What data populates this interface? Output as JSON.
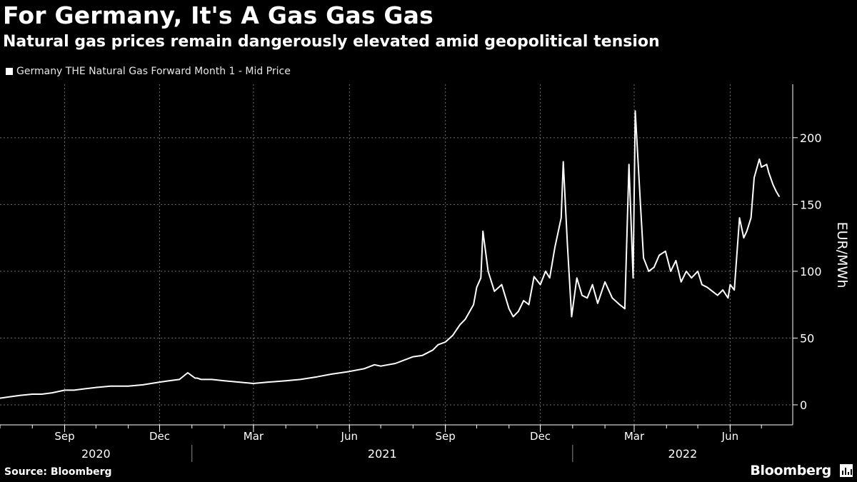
{
  "header": {
    "title": "For Germany, It's A Gas Gas Gas",
    "subtitle": "Natural gas prices remain dangerously elevated amid geopolitical tension"
  },
  "footer": {
    "source": "Source: Bloomberg",
    "brand": "Bloomberg"
  },
  "colors": {
    "background": "#000000",
    "line": "#ffffff",
    "grid": "#6e6e6e"
  },
  "chart_data": {
    "type": "line",
    "title": "For Germany, It's A Gas Gas Gas",
    "subtitle": "Natural gas prices remain dangerously elevated amid geopolitical tension",
    "ylabel": "EUR/MWh",
    "ylim": [
      -15,
      240
    ],
    "yticks": [
      0,
      50,
      100,
      150,
      200
    ],
    "xlim": [
      "2020-07-01",
      "2022-07-31"
    ],
    "grid": true,
    "legend_position": "top-left",
    "x_month_ticks": [
      {
        "date": "2020-09-01",
        "label": "Sep"
      },
      {
        "date": "2020-12-01",
        "label": "Dec"
      },
      {
        "date": "2021-03-01",
        "label": "Mar"
      },
      {
        "date": "2021-06-01",
        "label": "Jun"
      },
      {
        "date": "2021-09-01",
        "label": "Sep"
      },
      {
        "date": "2021-12-01",
        "label": "Dec"
      },
      {
        "date": "2022-03-01",
        "label": "Mar"
      },
      {
        "date": "2022-06-01",
        "label": "Jun"
      }
    ],
    "x_year_labels": [
      {
        "label": "2020",
        "start": "2020-07-01",
        "end": "2021-01-01"
      },
      {
        "label": "2021",
        "start": "2021-01-01",
        "end": "2022-01-01"
      },
      {
        "label": "2022",
        "start": "2022-01-01",
        "end": "2022-07-31"
      }
    ],
    "series": [
      {
        "name": "Germany THE Natural Gas Forward Month 1 - Mid Price",
        "x": [
          "2020-07-01",
          "2020-07-10",
          "2020-07-20",
          "2020-08-01",
          "2020-08-10",
          "2020-08-20",
          "2020-09-01",
          "2020-09-10",
          "2020-09-20",
          "2020-10-01",
          "2020-10-15",
          "2020-11-01",
          "2020-11-15",
          "2020-12-01",
          "2020-12-10",
          "2020-12-20",
          "2020-12-28",
          "2021-01-04",
          "2021-01-06",
          "2021-01-10",
          "2021-01-20",
          "2021-02-01",
          "2021-02-15",
          "2021-03-01",
          "2021-03-15",
          "2021-04-01",
          "2021-04-15",
          "2021-05-01",
          "2021-05-15",
          "2021-06-01",
          "2021-06-15",
          "2021-06-25",
          "2021-07-01",
          "2021-07-15",
          "2021-08-01",
          "2021-08-10",
          "2021-08-20",
          "2021-08-25",
          "2021-09-01",
          "2021-09-08",
          "2021-09-15",
          "2021-09-20",
          "2021-09-28",
          "2021-10-01",
          "2021-10-05",
          "2021-10-07",
          "2021-10-12",
          "2021-10-18",
          "2021-10-25",
          "2021-11-01",
          "2021-11-05",
          "2021-11-10",
          "2021-11-15",
          "2021-11-20",
          "2021-11-25",
          "2021-12-01",
          "2021-12-06",
          "2021-12-10",
          "2021-12-15",
          "2021-12-21",
          "2021-12-23",
          "2021-12-27",
          "2021-12-31",
          "2022-01-05",
          "2022-01-10",
          "2022-01-15",
          "2022-01-20",
          "2022-01-25",
          "2022-02-01",
          "2022-02-08",
          "2022-02-15",
          "2022-02-20",
          "2022-02-24",
          "2022-02-28",
          "2022-03-02",
          "2022-03-07",
          "2022-03-10",
          "2022-03-15",
          "2022-03-20",
          "2022-03-25",
          "2022-03-31",
          "2022-04-05",
          "2022-04-10",
          "2022-04-15",
          "2022-04-20",
          "2022-04-25",
          "2022-05-01",
          "2022-05-05",
          "2022-05-10",
          "2022-05-15",
          "2022-05-20",
          "2022-05-25",
          "2022-05-30",
          "2022-06-01",
          "2022-06-05",
          "2022-06-10",
          "2022-06-14",
          "2022-06-17",
          "2022-06-21",
          "2022-06-24",
          "2022-06-29",
          "2022-07-01",
          "2022-07-06",
          "2022-07-08",
          "2022-07-12",
          "2022-07-15",
          "2022-07-18"
        ],
        "values": [
          5,
          6,
          7,
          8,
          8,
          9,
          11,
          11,
          12,
          13,
          14,
          14,
          15,
          17,
          18,
          19,
          24,
          20,
          20,
          19,
          19,
          18,
          17,
          16,
          17,
          18,
          19,
          21,
          23,
          25,
          27,
          30,
          29,
          31,
          36,
          37,
          41,
          45,
          47,
          52,
          60,
          64,
          75,
          88,
          95,
          130,
          100,
          85,
          90,
          72,
          66,
          70,
          78,
          75,
          96,
          90,
          100,
          95,
          118,
          140,
          182,
          120,
          66,
          95,
          82,
          80,
          90,
          76,
          92,
          80,
          75,
          72,
          180,
          95,
          220,
          150,
          110,
          100,
          103,
          112,
          115,
          100,
          108,
          92,
          100,
          95,
          100,
          90,
          88,
          85,
          82,
          86,
          80,
          90,
          86,
          140,
          125,
          130,
          140,
          170,
          184,
          178,
          180,
          174,
          165,
          160,
          156
        ]
      }
    ]
  }
}
